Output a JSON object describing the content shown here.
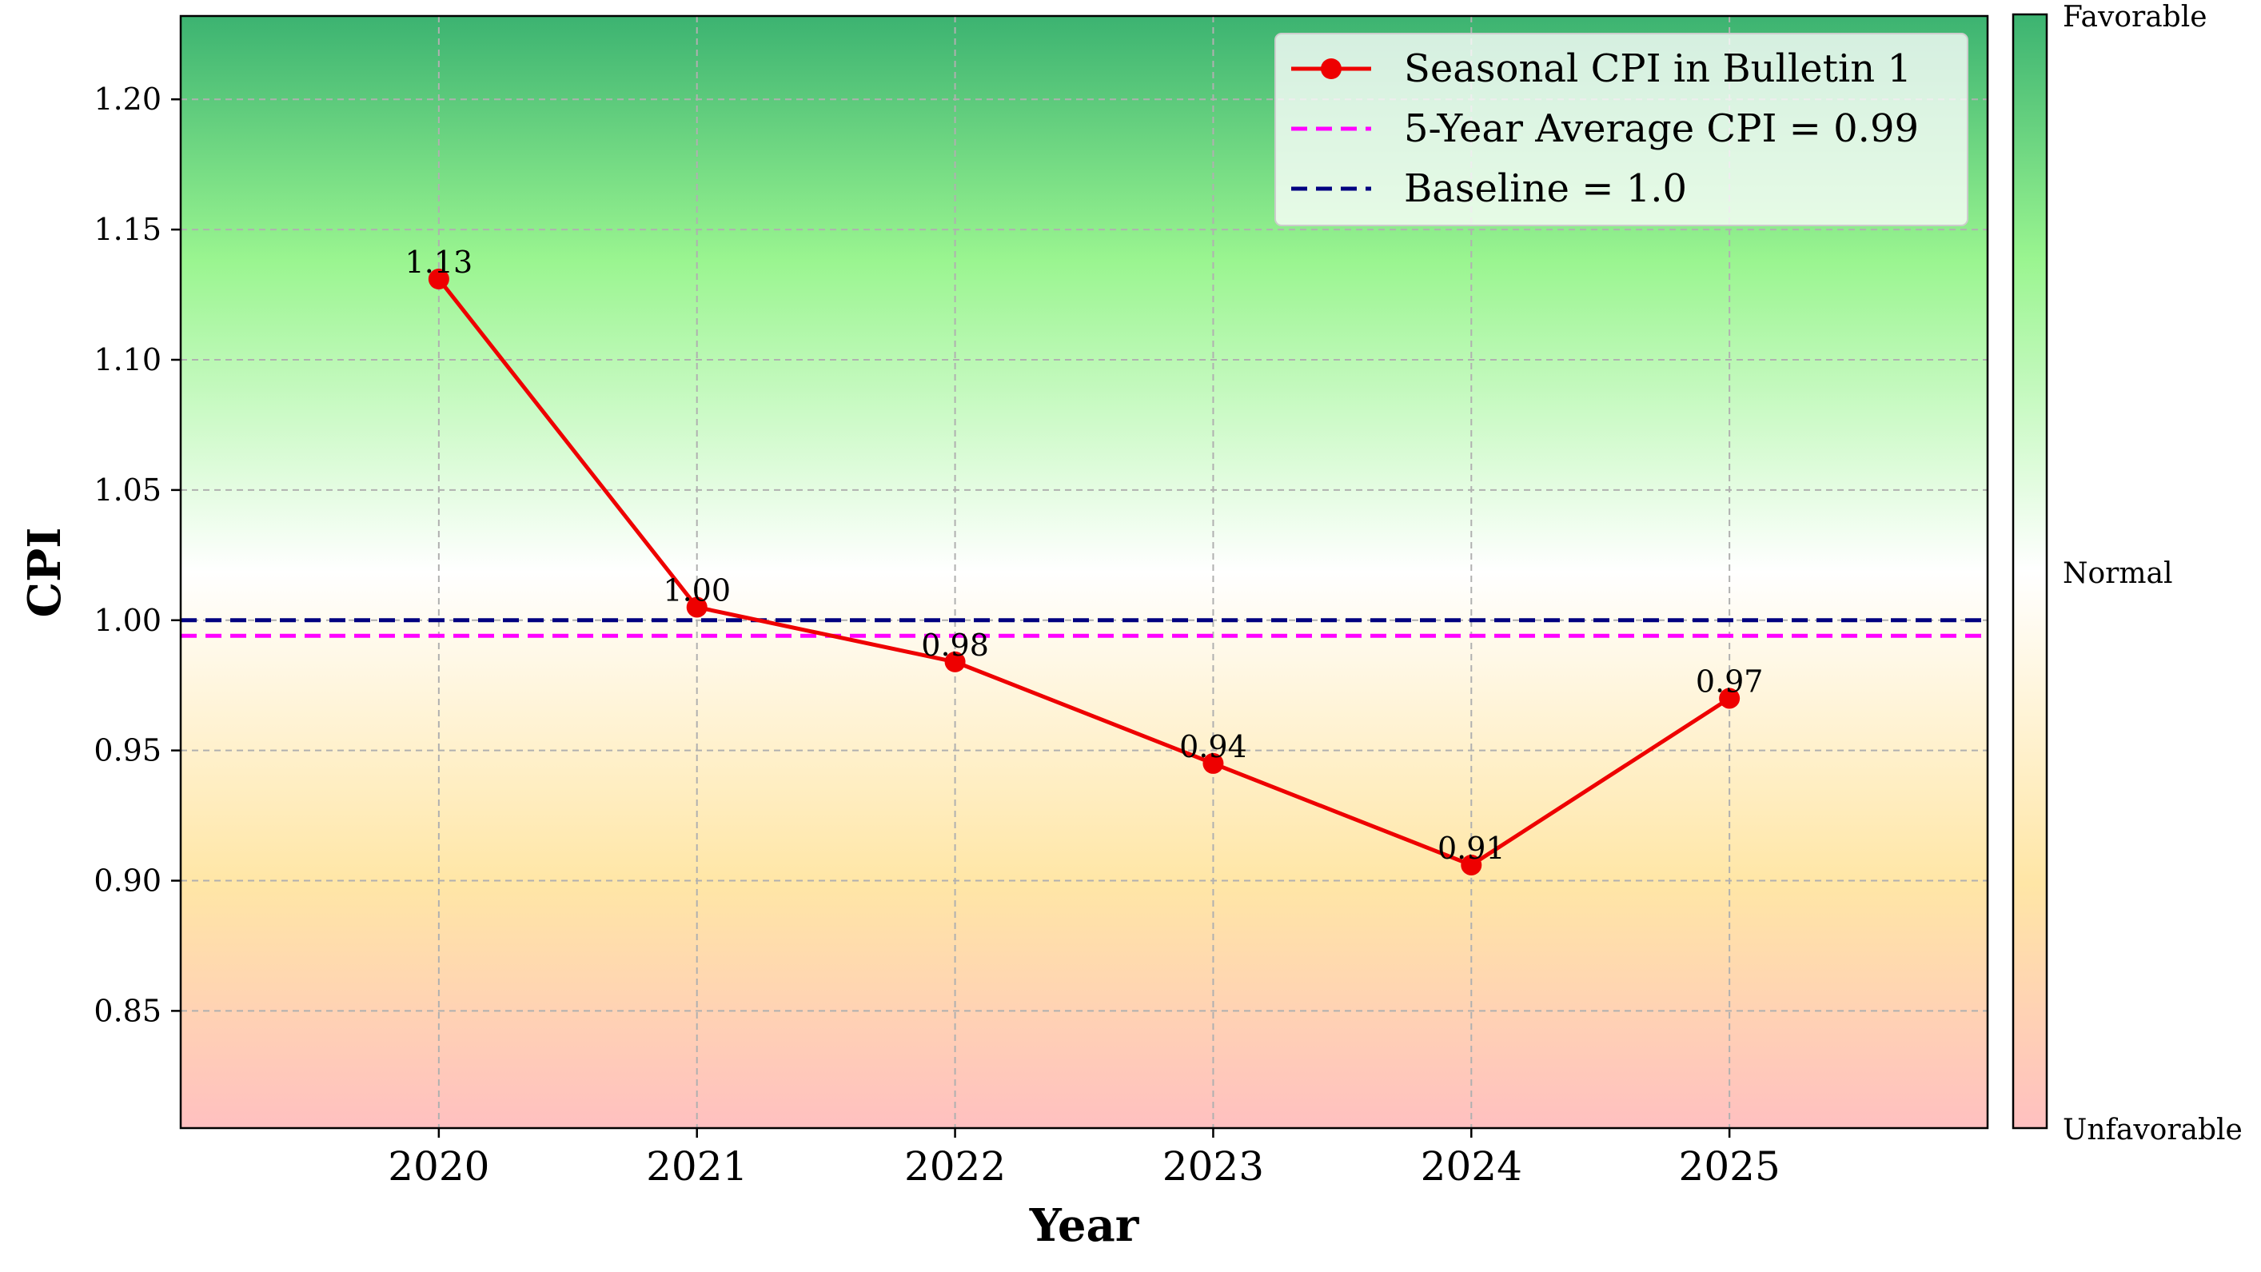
{
  "chart_data": {
    "type": "line",
    "title": "",
    "xlabel": "Year",
    "ylabel": "CPI",
    "x": [
      2020,
      2021,
      2022,
      2023,
      2024,
      2025
    ],
    "xtick_labels": [
      "2020",
      "2021",
      "2022",
      "2023",
      "2024",
      "2025"
    ],
    "ylim": [
      0.805,
      1.232
    ],
    "xlim": [
      2019,
      2026
    ],
    "yticks": [
      0.85,
      0.9,
      0.95,
      1.0,
      1.05,
      1.1,
      1.15,
      1.2
    ],
    "ytick_labels": [
      "0.85",
      "0.90",
      "0.95",
      "1.00",
      "1.05",
      "1.10",
      "1.15",
      "1.20"
    ],
    "grid": true,
    "series": [
      {
        "name": "Seasonal CPI in Bulletin 1",
        "values": [
          1.131,
          1.005,
          0.984,
          0.945,
          0.906,
          0.97
        ],
        "data_labels": [
          "1.13",
          "1.00",
          "0.98",
          "0.94",
          "0.91",
          "0.97"
        ],
        "color": "#ee0000",
        "marker": "circle",
        "style": "solid"
      }
    ],
    "reference_lines": [
      {
        "name": "5-Year Average CPI = 0.99",
        "value": 0.994,
        "color": "#ff00ff",
        "style": "dashed"
      },
      {
        "name": "Baseline = 1.0",
        "value": 1.0,
        "color": "#000080",
        "style": "dashed"
      }
    ],
    "legend": {
      "position": "top-right",
      "entries": [
        "Seasonal CPI in Bulletin 1",
        "5-Year Average CPI = 0.99",
        "Baseline = 1.0"
      ]
    },
    "background_gradient": {
      "bottom_color": "#ffc0c0",
      "lower_mid_color": "#ffe6a6",
      "center_color": "#ffffff",
      "upper_mid_color": "#9af590",
      "top_color": "#3cb371"
    },
    "colorbar": {
      "labels": [
        "Favorable",
        "Normal",
        "Unfavorable"
      ]
    }
  }
}
